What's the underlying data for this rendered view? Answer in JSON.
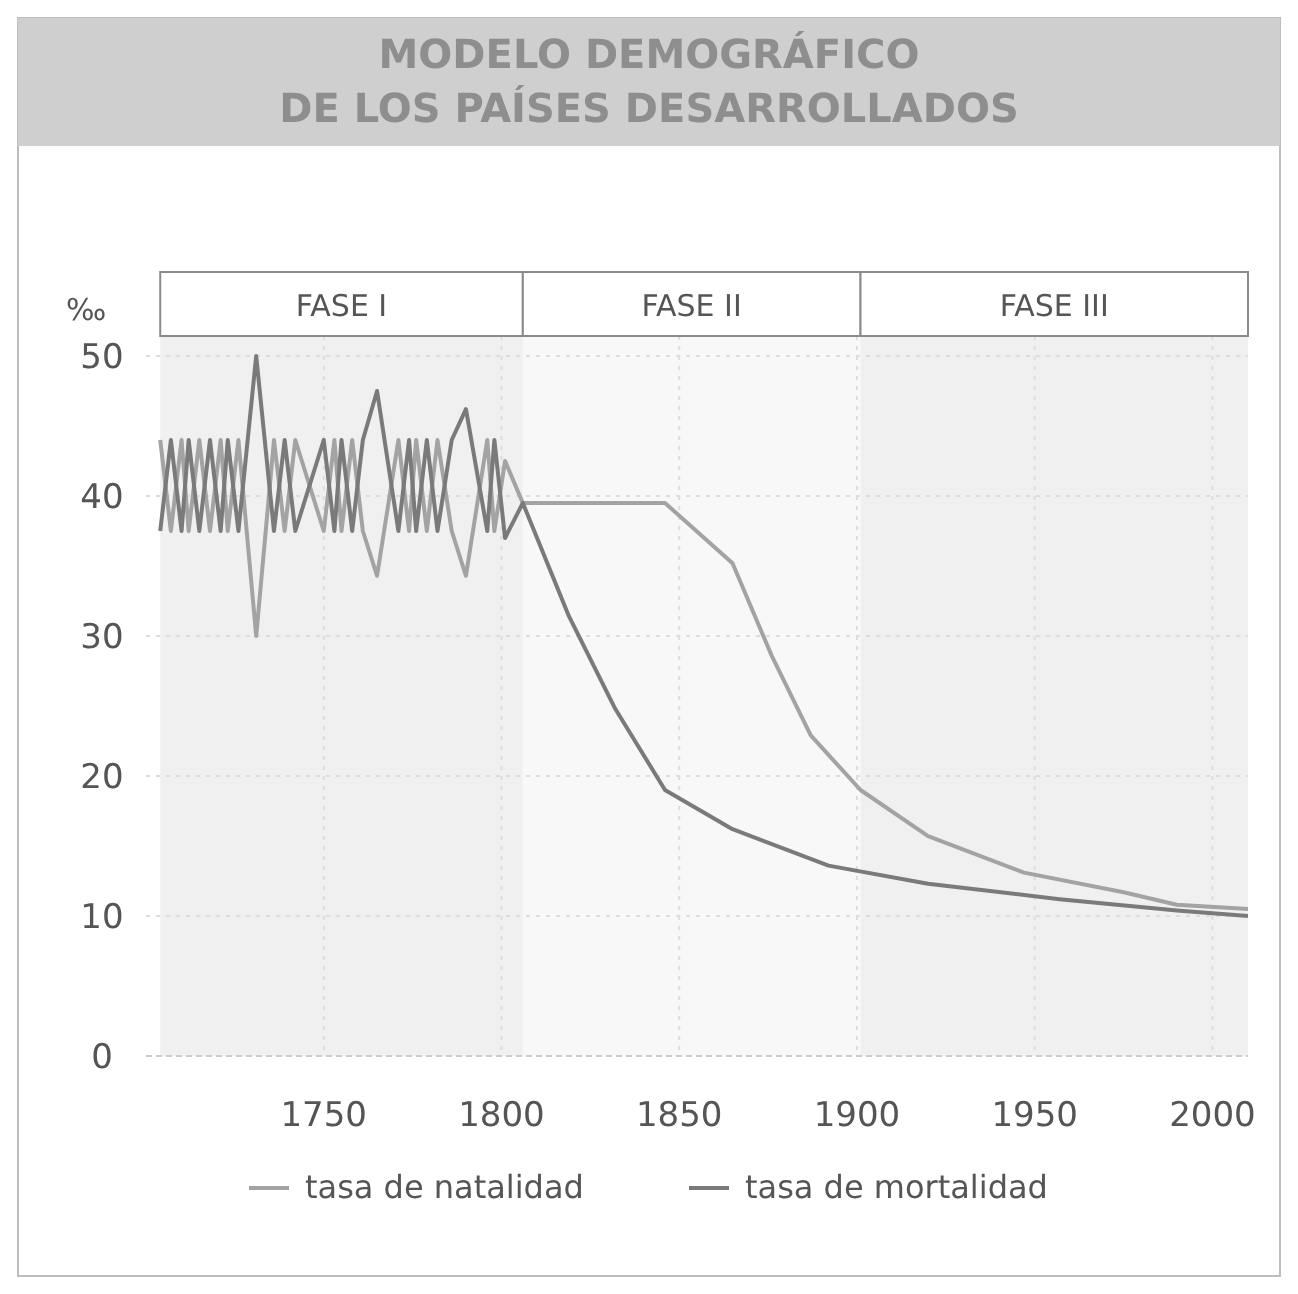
{
  "chart_data": {
    "type": "line",
    "title": "MODELO DEMOGRÁFICO\nDE LOS PAÍSES DESARROLLADOS",
    "ylabel": "‰",
    "xlim": [
      1700,
      2010
    ],
    "xticks": [
      1750,
      1800,
      1850,
      1900,
      1950,
      2000
    ],
    "ylim": [
      0,
      50
    ],
    "yticks": [
      0,
      10,
      20,
      30,
      40,
      50
    ],
    "grid": true,
    "legend": "bottom",
    "marker": "none",
    "line_style": "solid",
    "bands": [
      {
        "axis": "x",
        "from": 1704,
        "to": 1806,
        "label": "FASE I",
        "color": "#f0f0f0"
      },
      {
        "axis": "x",
        "from": 1806,
        "to": 1901,
        "label": "FASE II",
        "color": "#f8f8f8"
      },
      {
        "axis": "x",
        "from": 1901,
        "to": 2010,
        "label": "FASE III",
        "color": "#f0f0f0"
      }
    ],
    "series": [
      {
        "name": "tasa de natalidad",
        "color": "#a3a3a3",
        "x": [
          1704,
          1707,
          1710,
          1712,
          1715,
          1718,
          1721,
          1723,
          1726,
          1731,
          1736,
          1739,
          1742,
          1750,
          1753,
          1755,
          1758,
          1761,
          1765,
          1771,
          1774,
          1776,
          1779,
          1782,
          1786,
          1790,
          1796,
          1798,
          1801,
          1806,
          1846,
          1865,
          1876,
          1887,
          1901,
          1920,
          1947,
          1975,
          1990,
          2010
        ],
        "values": [
          44,
          37.5,
          44,
          37.5,
          44,
          37.5,
          44,
          37.5,
          44,
          30,
          44,
          37.5,
          44,
          37.5,
          44,
          37.5,
          44,
          37.5,
          34.3,
          44,
          37.5,
          44,
          37.5,
          44,
          37.5,
          34.3,
          44,
          37.5,
          42.5,
          39.5,
          39.5,
          35.2,
          28.6,
          22.9,
          19,
          15.7,
          13.1,
          11.7,
          10.8,
          10.5
        ]
      },
      {
        "name": "tasa de mortalidad",
        "color": "#7a7a7a",
        "x": [
          1704,
          1707,
          1710,
          1712,
          1715,
          1718,
          1721,
          1723,
          1726,
          1731,
          1736,
          1739,
          1742,
          1750,
          1753,
          1755,
          1758,
          1761,
          1765,
          1771,
          1774,
          1776,
          1779,
          1782,
          1786,
          1790,
          1796,
          1798,
          1801,
          1806,
          1819,
          1832,
          1846,
          1865,
          1892,
          1920,
          1957,
          1990,
          2010
        ],
        "values": [
          37.5,
          44,
          37.5,
          44,
          37.5,
          44,
          37.5,
          44,
          37.5,
          50,
          37.5,
          44,
          37.5,
          44,
          37.5,
          44,
          37.5,
          44,
          47.5,
          37.5,
          44,
          37.5,
          44,
          37.5,
          44,
          46.2,
          37.5,
          44,
          37,
          39.5,
          31.4,
          24.8,
          19,
          16.2,
          13.6,
          12.3,
          11.2,
          10.4,
          10
        ]
      }
    ]
  }
}
